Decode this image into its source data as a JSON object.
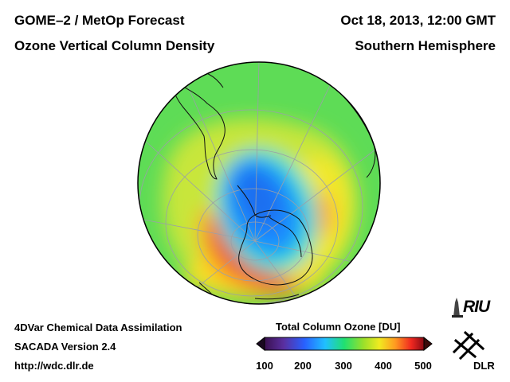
{
  "header": {
    "instrument": "GOME–2 / MetOp Forecast",
    "quantity": "Ozone Vertical Column Density",
    "datetime": "Oct 18, 2013, 12:00 GMT",
    "region": "Southern Hemisphere"
  },
  "footer": {
    "method": "4DVar Chemical Data Assimilation",
    "version": "SACADA Version 2.4",
    "url": "http://wdc.dlr.de"
  },
  "colorbar": {
    "title": "Total Column Ozone [DU]",
    "ticks": [
      "100",
      "200",
      "300",
      "400",
      "500"
    ],
    "min": 100,
    "max": 500,
    "colors": [
      "#2a0a30",
      "#5a2fa0",
      "#3050ff",
      "#1ab8ff",
      "#22e0e0",
      "#2ae07a",
      "#7fe02a",
      "#e8ef20",
      "#ffb020",
      "#ff5a10",
      "#e01020",
      "#8a0a14"
    ]
  },
  "logos": {
    "riu": "RIU",
    "dlr": "DLR"
  },
  "map": {
    "projection": "orthographic south polar",
    "ozone_hole_color": "#1a8cff",
    "background_ozone_color": "#5ee05e",
    "high_ozone_color": "#e8281e"
  }
}
